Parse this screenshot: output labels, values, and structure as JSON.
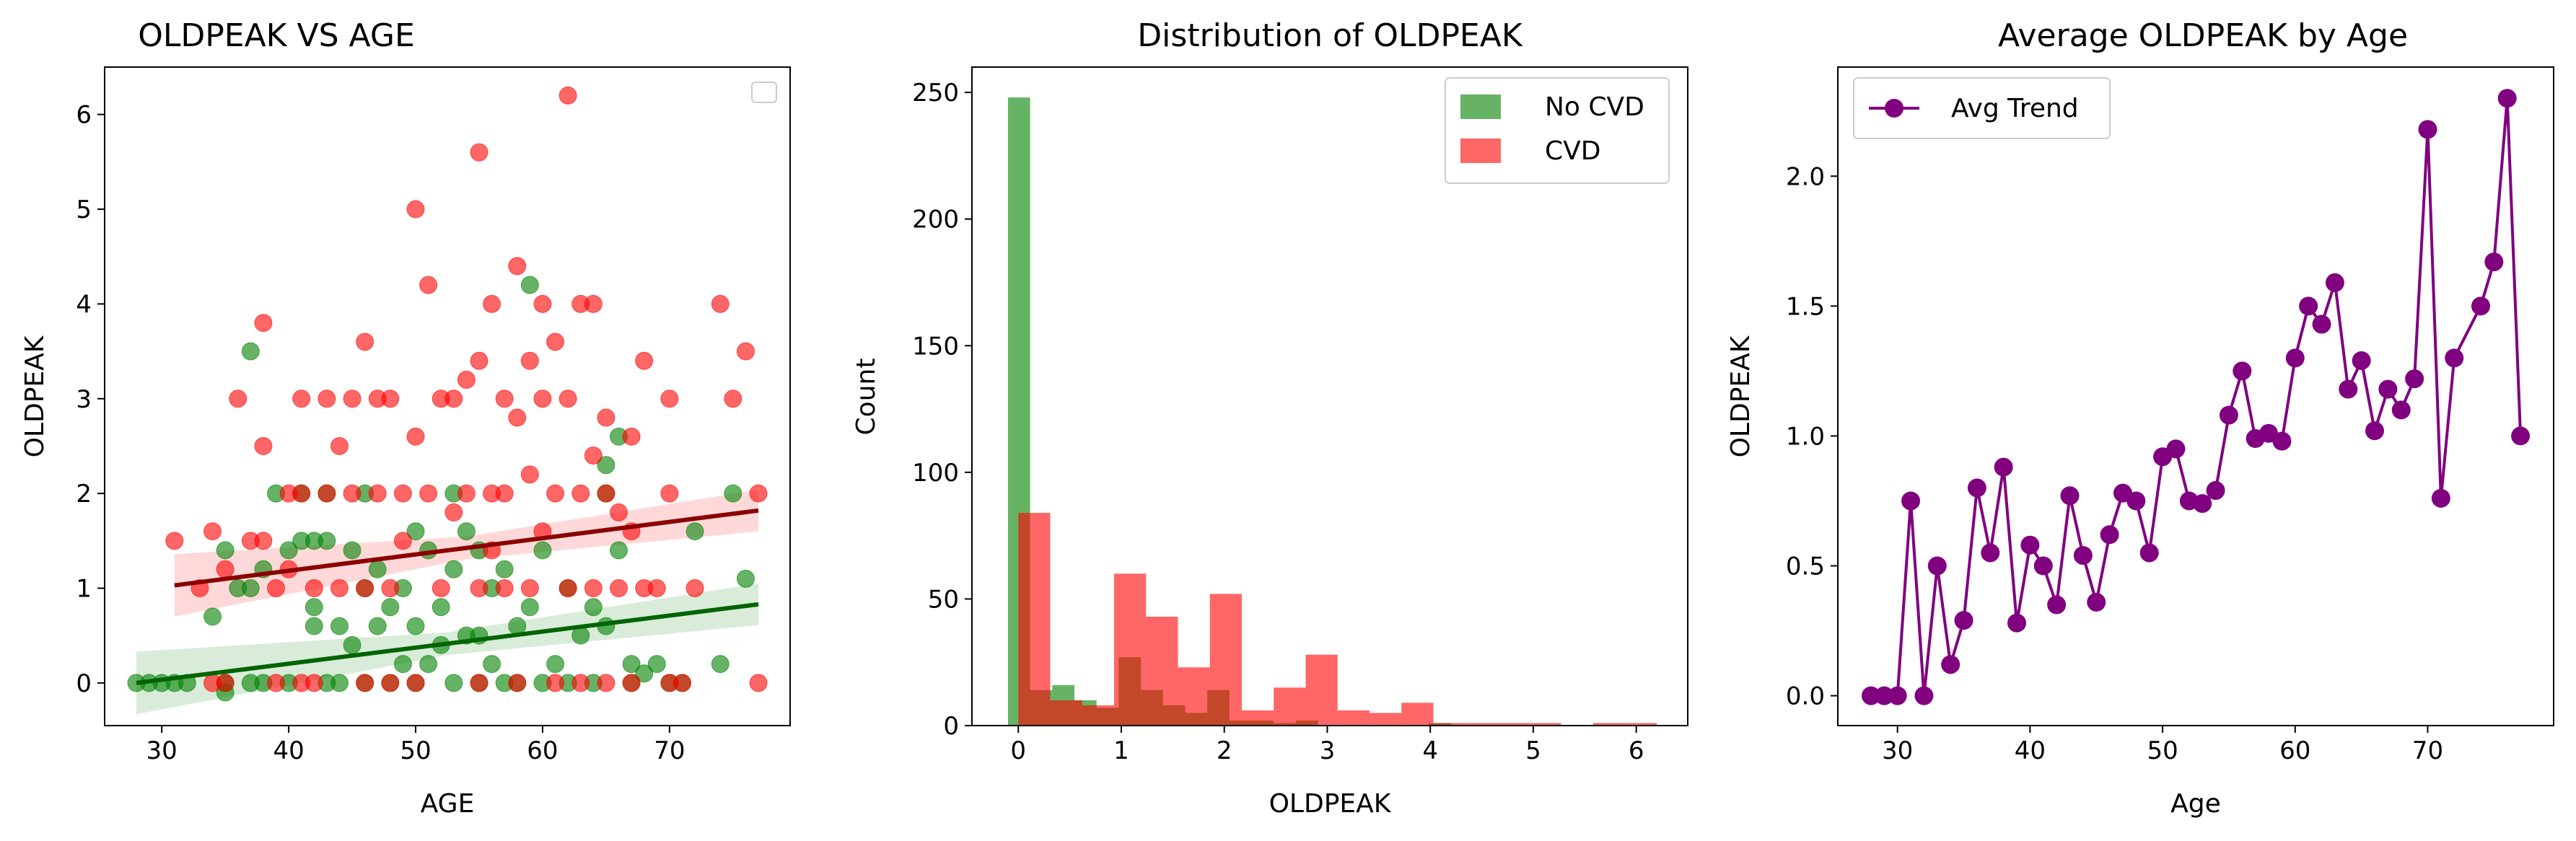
{
  "colors": {
    "no_cvd": "#008000",
    "cvd": "#ff0000",
    "no_cvd_fit": "#006400",
    "cvd_fit": "#8b0000",
    "avg": "#800080"
  },
  "chart_data": [
    {
      "type": "scatter",
      "title": "OLDPEAK VS AGE",
      "xlabel": "AGE",
      "ylabel": "OLDPEAK",
      "xlim": [
        25.5,
        79.5
      ],
      "ylim": [
        -0.45,
        6.5
      ],
      "xticks": [
        30,
        40,
        50,
        60,
        70
      ],
      "yticks": [
        0,
        1,
        2,
        3,
        4,
        5,
        6
      ],
      "legend": "top-right (empty)",
      "grid": false,
      "series": [
        {
          "group": "no_cvd",
          "points": [
            [
              28,
              0
            ],
            [
              29,
              0
            ],
            [
              30,
              0
            ],
            [
              31,
              0
            ],
            [
              32,
              0
            ],
            [
              34,
              0.7
            ],
            [
              35,
              0
            ],
            [
              35,
              1.4
            ],
            [
              35,
              -0.1
            ],
            [
              36,
              1.0
            ],
            [
              37,
              0
            ],
            [
              37,
              3.5
            ],
            [
              38,
              0
            ],
            [
              38,
              1.2
            ],
            [
              39,
              2.0
            ],
            [
              40,
              1.4
            ],
            [
              40,
              0
            ],
            [
              41,
              1.5
            ],
            [
              41,
              2.0
            ],
            [
              42,
              1.5
            ],
            [
              42,
              0.6
            ],
            [
              42,
              0.8
            ],
            [
              43,
              1.5
            ],
            [
              43,
              0
            ],
            [
              44,
              0.6
            ],
            [
              44,
              0
            ],
            [
              45,
              1.4
            ],
            [
              45,
              0.4
            ],
            [
              46,
              0
            ],
            [
              46,
              2.0
            ],
            [
              47,
              0.6
            ],
            [
              47,
              1.2
            ],
            [
              48,
              0
            ],
            [
              48,
              0.8
            ],
            [
              49,
              1.0
            ],
            [
              49,
              0.2
            ],
            [
              50,
              0
            ],
            [
              50,
              1.6
            ],
            [
              50,
              0.6
            ],
            [
              51,
              1.4
            ],
            [
              51,
              0.2
            ],
            [
              52,
              0.4
            ],
            [
              52,
              0.8
            ],
            [
              53,
              0
            ],
            [
              53,
              1.2
            ],
            [
              54,
              0.5
            ],
            [
              54,
              1.6
            ],
            [
              55,
              0
            ],
            [
              55,
              1.4
            ],
            [
              55,
              0.5
            ],
            [
              56,
              1.0
            ],
            [
              56,
              0.2
            ],
            [
              57,
              0
            ],
            [
              57,
              1.2
            ],
            [
              58,
              0.6
            ],
            [
              58,
              0
            ],
            [
              59,
              4.2
            ],
            [
              59,
              0.8
            ],
            [
              60,
              0
            ],
            [
              60,
              1.4
            ],
            [
              61,
              0.2
            ],
            [
              62,
              0
            ],
            [
              62,
              1.0
            ],
            [
              63,
              0.5
            ],
            [
              64,
              0
            ],
            [
              64,
              0.8
            ],
            [
              65,
              0.6
            ],
            [
              65,
              2.0
            ],
            [
              65,
              2.3
            ],
            [
              66,
              2.6
            ],
            [
              66,
              1.4
            ],
            [
              67,
              0
            ],
            [
              67,
              0.2
            ],
            [
              68,
              0.1
            ],
            [
              69,
              0.2
            ],
            [
              70,
              0
            ],
            [
              71,
              0
            ],
            [
              72,
              1.6
            ],
            [
              74,
              0.2
            ],
            [
              75,
              2.0
            ],
            [
              76,
              1.1
            ],
            [
              37,
              1.0
            ],
            [
              43,
              2.0
            ],
            [
              46,
              1.0
            ],
            [
              53,
              2.0
            ]
          ]
        },
        {
          "group": "cvd",
          "points": [
            [
              31,
              1.5
            ],
            [
              33,
              1.0
            ],
            [
              34,
              0
            ],
            [
              34,
              1.6
            ],
            [
              35,
              0
            ],
            [
              35,
              1.2
            ],
            [
              36,
              3.0
            ],
            [
              37,
              1.5
            ],
            [
              38,
              1.5
            ],
            [
              38,
              3.8
            ],
            [
              38,
              2.5
            ],
            [
              39,
              0
            ],
            [
              39,
              1.0
            ],
            [
              40,
              2.0
            ],
            [
              40,
              1.2
            ],
            [
              41,
              3.0
            ],
            [
              41,
              0
            ],
            [
              41,
              2.0
            ],
            [
              42,
              0
            ],
            [
              42,
              1.0
            ],
            [
              43,
              3.0
            ],
            [
              43,
              2.0
            ],
            [
              44,
              2.5
            ],
            [
              44,
              1.0
            ],
            [
              45,
              3.0
            ],
            [
              45,
              2.0
            ],
            [
              46,
              3.6
            ],
            [
              46,
              1.0
            ],
            [
              46,
              0
            ],
            [
              47,
              2.0
            ],
            [
              47,
              3.0
            ],
            [
              48,
              1.0
            ],
            [
              48,
              3.0
            ],
            [
              48,
              0
            ],
            [
              49,
              1.5
            ],
            [
              49,
              2.0
            ],
            [
              50,
              5.0
            ],
            [
              50,
              2.6
            ],
            [
              50,
              0
            ],
            [
              51,
              4.2
            ],
            [
              51,
              2.0
            ],
            [
              52,
              1.0
            ],
            [
              52,
              3.0
            ],
            [
              53,
              3.0
            ],
            [
              53,
              1.8
            ],
            [
              54,
              3.2
            ],
            [
              54,
              2.0
            ],
            [
              55,
              5.6
            ],
            [
              55,
              3.4
            ],
            [
              55,
              1.0
            ],
            [
              55,
              0
            ],
            [
              56,
              4.0
            ],
            [
              56,
              2.0
            ],
            [
              56,
              1.4
            ],
            [
              57,
              3.0
            ],
            [
              57,
              2.0
            ],
            [
              57,
              1.0
            ],
            [
              58,
              4.4
            ],
            [
              58,
              2.8
            ],
            [
              58,
              0
            ],
            [
              59,
              3.4
            ],
            [
              59,
              2.2
            ],
            [
              59,
              1.0
            ],
            [
              60,
              4.0
            ],
            [
              60,
              3.0
            ],
            [
              60,
              1.6
            ],
            [
              61,
              3.6
            ],
            [
              61,
              2.0
            ],
            [
              61,
              0
            ],
            [
              62,
              6.2
            ],
            [
              62,
              3.0
            ],
            [
              62,
              1.0
            ],
            [
              63,
              4.0
            ],
            [
              63,
              2.0
            ],
            [
              63,
              0
            ],
            [
              64,
              4.0
            ],
            [
              64,
              2.4
            ],
            [
              64,
              1.0
            ],
            [
              65,
              2.8
            ],
            [
              65,
              2.0
            ],
            [
              65,
              0
            ],
            [
              66,
              1.8
            ],
            [
              66,
              1.0
            ],
            [
              67,
              2.6
            ],
            [
              67,
              1.6
            ],
            [
              67,
              0
            ],
            [
              68,
              3.4
            ],
            [
              68,
              1.0
            ],
            [
              69,
              1.0
            ],
            [
              70,
              3.0
            ],
            [
              70,
              2.0
            ],
            [
              70,
              0
            ],
            [
              71,
              0
            ],
            [
              72,
              1.0
            ],
            [
              74,
              4.0
            ],
            [
              75,
              3.0
            ],
            [
              76,
              3.5
            ],
            [
              77,
              2.0
            ],
            [
              77,
              0
            ]
          ]
        }
      ],
      "fits": [
        {
          "group": "no_cvd",
          "x": [
            28,
            77
          ],
          "y": [
            0.0,
            0.83
          ]
        },
        {
          "group": "cvd",
          "x": [
            31,
            77
          ],
          "y": [
            1.03,
            1.82
          ]
        }
      ]
    },
    {
      "type": "bar",
      "title": "Distribution of OLDPEAK",
      "xlabel": "OLDPEAK",
      "ylabel": "Count",
      "xlim": [
        -0.45,
        6.5
      ],
      "ylim": [
        0,
        260
      ],
      "xticks": [
        0,
        1,
        2,
        3,
        4,
        5,
        6
      ],
      "yticks": [
        0,
        50,
        100,
        150,
        200,
        250
      ],
      "legend": "top-right",
      "grid": false,
      "series": [
        {
          "name": "No CVD",
          "group": "no_cvd",
          "bin_edges": [
            -0.1,
            0.115,
            0.33,
            0.545,
            0.76,
            0.975,
            1.19,
            1.405,
            1.62,
            1.835,
            2.05,
            2.265,
            2.48,
            2.695,
            2.91,
            3.125,
            3.34,
            3.555,
            3.77,
            3.985,
            4.2
          ],
          "counts": [
            248,
            14,
            16,
            10,
            7,
            27,
            14,
            8,
            5,
            14,
            2,
            2,
            1,
            2,
            0,
            0,
            0,
            0,
            0,
            1
          ]
        },
        {
          "name": "CVD",
          "group": "cvd",
          "bin_edges": [
            0,
            0.31,
            0.62,
            0.93,
            1.24,
            1.55,
            1.86,
            2.17,
            2.48,
            2.79,
            3.1,
            3.41,
            3.72,
            4.03,
            4.34,
            4.65,
            4.96,
            5.27,
            5.58,
            5.89,
            6.2
          ],
          "counts": [
            84,
            10,
            8,
            60,
            43,
            23,
            52,
            6,
            15,
            28,
            6,
            5,
            9,
            1,
            1,
            1,
            1,
            0,
            1,
            1
          ]
        }
      ]
    },
    {
      "type": "line",
      "title": "Average OLDPEAK by Age",
      "xlabel": "Age",
      "ylabel": "OLDPEAK",
      "xlim": [
        25.5,
        79.5
      ],
      "ylim": [
        -0.115,
        2.42
      ],
      "xticks": [
        30,
        40,
        50,
        60,
        70
      ],
      "yticks": [
        0.0,
        0.5,
        1.0,
        1.5,
        2.0
      ],
      "ytick_labels": [
        "0.0",
        "0.5",
        "1.0",
        "1.5",
        "2.0"
      ],
      "legend": "top-left",
      "grid": false,
      "series": [
        {
          "name": "Avg Trend",
          "group": "avg",
          "x": [
            28,
            29,
            30,
            31,
            32,
            33,
            34,
            35,
            36,
            37,
            38,
            39,
            40,
            41,
            42,
            43,
            44,
            45,
            46,
            47,
            48,
            49,
            50,
            51,
            52,
            53,
            54,
            55,
            56,
            57,
            58,
            59,
            60,
            61,
            62,
            63,
            64,
            65,
            66,
            67,
            68,
            69,
            70,
            71,
            72,
            74,
            75,
            76,
            77
          ],
          "y": [
            0,
            0,
            0,
            0.75,
            0,
            0.5,
            0.12,
            0.29,
            0.8,
            0.55,
            0.88,
            0.28,
            0.58,
            0.5,
            0.35,
            0.77,
            0.54,
            0.36,
            0.62,
            0.78,
            0.75,
            0.55,
            0.92,
            0.95,
            0.75,
            0.74,
            0.79,
            1.08,
            1.25,
            0.99,
            1.01,
            0.98,
            1.3,
            1.5,
            1.43,
            1.59,
            1.18,
            1.29,
            1.02,
            1.18,
            1.1,
            1.22,
            2.18,
            0.76,
            1.3,
            1.5,
            1.67,
            2.3,
            1.0
          ]
        }
      ]
    }
  ]
}
